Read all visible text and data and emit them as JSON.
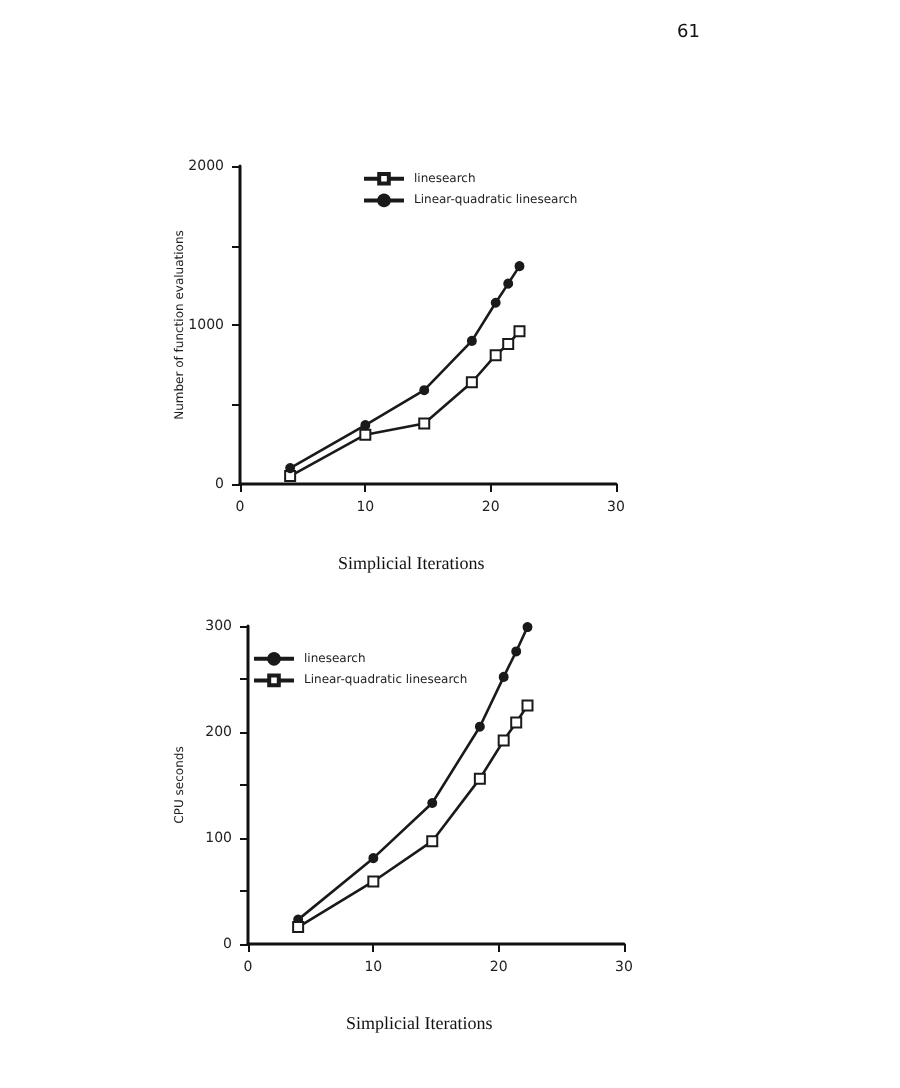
{
  "chart_data": [
    {
      "type": "line",
      "xlabel": "Simplicial Iterations",
      "ylabel": "Number of function evaluations",
      "annotations": [
        "61"
      ],
      "xlim": [
        0,
        30
      ],
      "xticks": [
        0,
        10,
        20,
        30
      ],
      "ylim": [
        0,
        2000
      ],
      "yticks": [
        0,
        {
          "value": 500,
          "label": null
        },
        1000,
        {
          "value": 1500,
          "label": null
        },
        2000
      ],
      "legend": "top",
      "grid": false,
      "line_style": "solid",
      "series": [
        {
          "name": "linesearch",
          "color": "#1a1a1a",
          "marker": "square",
          "x": [
            4,
            10,
            14.7,
            18.5,
            20.4,
            21.4,
            22.3
          ],
          "values": [
            50,
            310,
            380,
            640,
            810,
            880,
            960
          ]
        },
        {
          "name": "Linear-quadratic linesearch",
          "color": "#1a1a1a",
          "marker": "circle",
          "x": [
            4,
            10,
            14.7,
            18.5,
            20.4,
            21.4,
            22.3
          ],
          "values": [
            100,
            370,
            590,
            900,
            1140,
            1260,
            1370
          ]
        }
      ]
    },
    {
      "type": "line",
      "xlabel": "Simplicial Iterations",
      "ylabel": "CPU seconds",
      "xlim": [
        0,
        30
      ],
      "xticks": [
        0,
        10,
        20,
        30
      ],
      "ylim": [
        0,
        300
      ],
      "yticks": [
        0,
        {
          "value": 50,
          "label": null
        },
        100,
        {
          "value": 150,
          "label": null
        },
        200,
        {
          "value": 250,
          "label": null
        },
        300
      ],
      "legend": "top left",
      "grid": false,
      "line_style": "solid",
      "series": [
        {
          "name": "linesearch",
          "color": "#1a1a1a",
          "marker": "circle",
          "x": [
            4,
            10,
            14.7,
            18.5,
            20.4,
            21.4,
            22.3
          ],
          "values": [
            23,
            81,
            133,
            205,
            252,
            276,
            299
          ]
        },
        {
          "name": "Linear-quadratic linesearch",
          "color": "#1a1a1a",
          "marker": "square",
          "x": [
            4,
            10,
            14.7,
            18.5,
            20.4,
            21.4,
            22.3
          ],
          "values": [
            16,
            59,
            97,
            156,
            192,
            209,
            225
          ]
        }
      ]
    }
  ]
}
